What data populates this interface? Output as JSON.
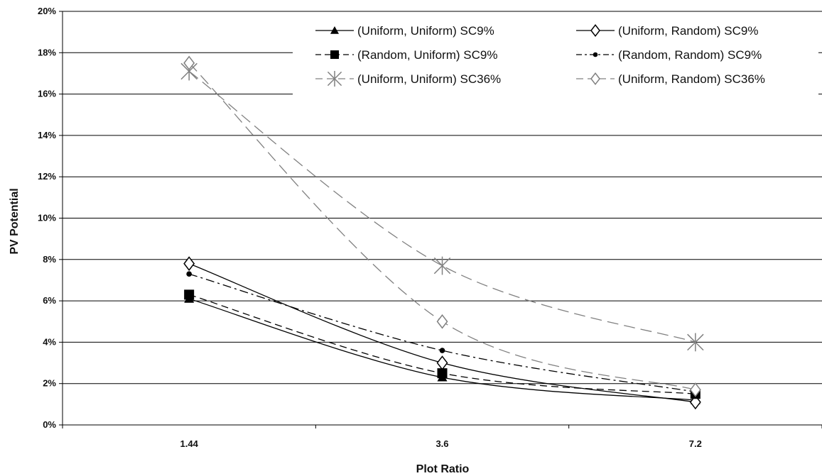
{
  "chart_data": {
    "type": "line",
    "xlabel": "Plot Ratio",
    "ylabel": "PV Potential",
    "categories": [
      "1.44",
      "3.6",
      "7.2"
    ],
    "ylim": [
      0,
      20
    ],
    "y_ticks": [
      "0%",
      "2%",
      "4%",
      "6%",
      "8%",
      "10%",
      "12%",
      "14%",
      "16%",
      "18%",
      "20%"
    ],
    "grid": "horizontal",
    "legend_position": "top-right",
    "series": [
      {
        "name": "(Uniform, Uniform) SC9%",
        "values": [
          6.1,
          2.3,
          1.2
        ],
        "color": "#000000",
        "marker": "triangle-filled",
        "dash": "solid"
      },
      {
        "name": "(Uniform, Random) SC9%",
        "values": [
          7.8,
          3.0,
          1.1
        ],
        "color": "#000000",
        "marker": "diamond-open",
        "dash": "solid"
      },
      {
        "name": "(Random, Uniform) SC9%",
        "values": [
          6.3,
          2.5,
          1.5
        ],
        "color": "#000000",
        "marker": "square-filled",
        "dash": "dashed"
      },
      {
        "name": "(Random, Random) SC9%",
        "values": [
          7.3,
          3.6,
          1.6
        ],
        "color": "#000000",
        "marker": "circle-filled",
        "dash": "dashdot"
      },
      {
        "name": "(Uniform, Uniform) SC36%",
        "values": [
          17.1,
          7.7,
          4.0
        ],
        "color": "#808080",
        "marker": "asterisk",
        "dash": "longdash"
      },
      {
        "name": "(Uniform, Random) SC36%",
        "values": [
          17.5,
          5.0,
          1.7
        ],
        "color": "#808080",
        "marker": "diamond-open",
        "dash": "longdash"
      }
    ]
  }
}
